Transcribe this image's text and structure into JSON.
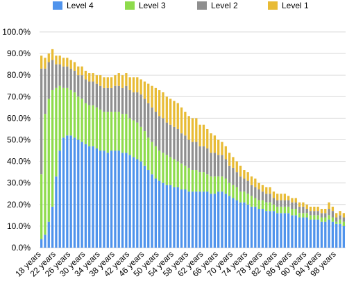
{
  "chart_data": {
    "type": "bar",
    "stacked": true,
    "title": "",
    "xlabel": "",
    "ylabel": "",
    "ylim": [
      0,
      100
    ],
    "y_ticks": [
      "0.0%",
      "10.0%",
      "20.0%",
      "30.0%",
      "40.0%",
      "50.0%",
      "60.0%",
      "70.0%",
      "80.0%",
      "90.0%",
      "100.0%"
    ],
    "grid": true,
    "legend_position": "top",
    "categories": [
      "18 years",
      "19 years",
      "20 years",
      "21 years",
      "22 years",
      "23 years",
      "24 years",
      "25 years",
      "26 years",
      "27 years",
      "28 years",
      "29 years",
      "30 years",
      "31 years",
      "32 years",
      "33 years",
      "34 years",
      "35 years",
      "36 years",
      "37 years",
      "38 years",
      "39 years",
      "40 years",
      "41 years",
      "42 years",
      "43 years",
      "44 years",
      "45 years",
      "46 years",
      "47 years",
      "48 years",
      "49 years",
      "50 years",
      "51 years",
      "52 years",
      "53 years",
      "54 years",
      "55 years",
      "56 years",
      "57 years",
      "58 years",
      "59 years",
      "60 years",
      "61 years",
      "62 years",
      "63 years",
      "64 years",
      "65 years",
      "66 years",
      "67 years",
      "68 years",
      "69 years",
      "70 years",
      "71 years",
      "72 years",
      "73 years",
      "74 years",
      "75 years",
      "76 years",
      "77 years",
      "78 years",
      "79 years",
      "80 years",
      "81 years",
      "82 years",
      "83 years",
      "84 years",
      "85 years",
      "86 years",
      "87 years",
      "88 years",
      "89 years",
      "90 years",
      "91 years",
      "92 years",
      "93 years",
      "94 years",
      "95 years",
      "96 years",
      "97 years",
      "98 years",
      "99 years",
      "100 years"
    ],
    "x_tick_labels": [
      "18 years",
      "22 years",
      "26 years",
      "30 years",
      "34 years",
      "38 years",
      "42 years",
      "46 years",
      "50 years",
      "54 years",
      "58 years",
      "62 years",
      "66 years",
      "70 years",
      "74 years",
      "78 years",
      "82 years",
      "86 years",
      "90 years",
      "94 years",
      "98 years"
    ],
    "series": [
      {
        "name": "Level 4",
        "color": "#4f93ec",
        "values": [
          4,
          6,
          12,
          19,
          33,
          45,
          51,
          52,
          52,
          51,
          50,
          49,
          48,
          47,
          47,
          46,
          45,
          45,
          44,
          45,
          45,
          45,
          44,
          44,
          43,
          42,
          41,
          40,
          38,
          36,
          34,
          32,
          31,
          30,
          29,
          29,
          28,
          28,
          27,
          27,
          26,
          26,
          26,
          26,
          26,
          26,
          25,
          25,
          26,
          26,
          25,
          24,
          23,
          22,
          21,
          21,
          20,
          19,
          19,
          18,
          18,
          17,
          17,
          17,
          16,
          16,
          16,
          16,
          15,
          15,
          14,
          14,
          14,
          13,
          13,
          13,
          12,
          12,
          13,
          12,
          11,
          11,
          10
        ]
      },
      {
        "name": "Level 3",
        "color": "#8edb4c",
        "values": [
          30,
          56,
          57,
          54,
          41,
          30,
          23,
          22,
          21,
          21,
          20,
          20,
          19,
          19,
          19,
          19,
          19,
          18,
          19,
          18,
          18,
          18,
          18,
          18,
          17,
          17,
          17,
          16,
          16,
          15,
          15,
          15,
          14,
          14,
          14,
          13,
          13,
          12,
          12,
          11,
          11,
          10,
          10,
          9,
          9,
          8,
          8,
          8,
          7,
          7,
          7,
          6,
          6,
          6,
          5,
          5,
          5,
          5,
          4,
          4,
          4,
          4,
          4,
          3,
          3,
          3,
          3,
          3,
          3,
          3,
          2,
          2,
          2,
          2,
          2,
          2,
          2,
          2,
          2,
          2,
          1,
          2,
          2
        ]
      },
      {
        "name": "Level 2",
        "color": "#8f8f8f",
        "values": [
          49,
          21,
          17,
          14,
          11,
          10,
          10,
          10,
          10,
          10,
          10,
          11,
          11,
          11,
          11,
          11,
          11,
          11,
          11,
          11,
          12,
          12,
          12,
          13,
          13,
          13,
          14,
          15,
          15,
          16,
          16,
          16,
          16,
          16,
          15,
          15,
          15,
          15,
          14,
          14,
          13,
          13,
          13,
          12,
          12,
          12,
          11,
          11,
          10,
          10,
          9,
          8,
          8,
          7,
          7,
          6,
          6,
          5,
          5,
          5,
          4,
          4,
          4,
          3,
          3,
          3,
          3,
          3,
          3,
          3,
          3,
          3,
          2,
          2,
          2,
          2,
          2,
          2,
          3,
          3,
          2,
          2,
          2
        ]
      },
      {
        "name": "Level 1",
        "color": "#e8bb35",
        "values": [
          6,
          5,
          4,
          5,
          4,
          4,
          4,
          4,
          4,
          4,
          4,
          4,
          4,
          4,
          4,
          4,
          5,
          5,
          5,
          5,
          5,
          6,
          6,
          6,
          6,
          7,
          7,
          7,
          8,
          9,
          10,
          11,
          12,
          12,
          12,
          12,
          12,
          12,
          12,
          11,
          11,
          11,
          11,
          10,
          10,
          9,
          9,
          8,
          7,
          6,
          6,
          6,
          5,
          5,
          5,
          4,
          4,
          4,
          4,
          3,
          3,
          3,
          3,
          3,
          3,
          3,
          3,
          2,
          2,
          2,
          2,
          2,
          2,
          2,
          2,
          2,
          2,
          2,
          3,
          2,
          2,
          2,
          2
        ]
      }
    ]
  }
}
